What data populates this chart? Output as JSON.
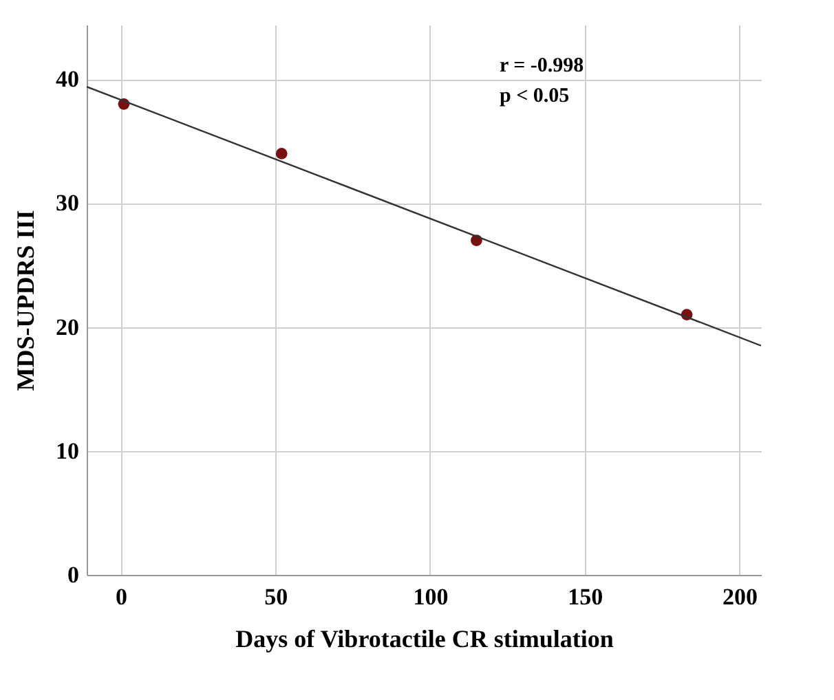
{
  "chart_data": {
    "type": "scatter",
    "xlabel": "Days of Vibrotactile CR stimulation",
    "ylabel": "MDS-UPDRS III",
    "series": [
      {
        "marker": "circle",
        "color": "#7a1010",
        "x": [
          1,
          52,
          115,
          183
        ],
        "values": [
          38,
          34,
          27,
          21
        ]
      },
      {
        "type": "line",
        "marker": "none",
        "color": "#333333",
        "x": [
          -11,
          207
        ],
        "values": [
          39.4,
          18.5
        ]
      }
    ],
    "xlim": [
      -11,
      207
    ],
    "xticks": [
      0,
      50,
      100,
      150,
      200
    ],
    "ylim": [
      0,
      44.4
    ],
    "yticks": [
      0,
      10,
      20,
      30,
      40
    ],
    "grid": true,
    "annotations": [
      "r = -0.998",
      "p < 0.05"
    ]
  }
}
